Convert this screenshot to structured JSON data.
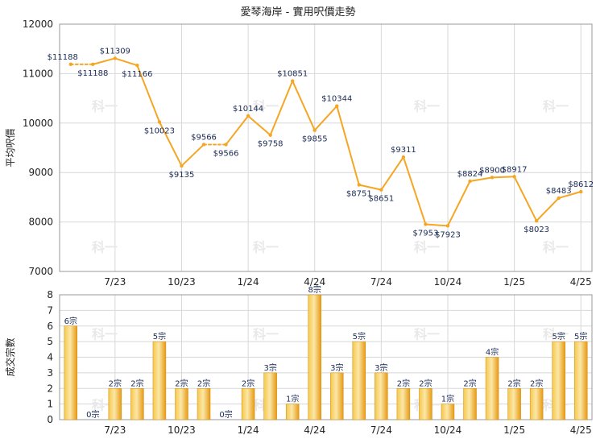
{
  "chart_data": [
    {
      "type": "line",
      "title": "愛琴海岸 - 實用呎價走勢",
      "ylabel": "平均呎價",
      "ylim": [
        7000,
        12000
      ],
      "yticks": [
        "12000",
        "11000",
        "10000",
        "9000",
        "8000",
        "7000"
      ],
      "xticks": [
        "7/23",
        "10/23",
        "1/24",
        "4/24",
        "7/24",
        "10/24",
        "1/25",
        "4/25"
      ],
      "grid": true,
      "color": "#f5a623",
      "points": [
        {
          "x": 0,
          "y": 11188,
          "label": "$11188"
        },
        {
          "x": 1,
          "y": 11188,
          "label": "$11188"
        },
        {
          "x": 2,
          "y": 11309,
          "label": "$11309"
        },
        {
          "x": 3,
          "y": 11166,
          "label": "$11166"
        },
        {
          "x": 4,
          "y": 10023,
          "label": "$10023"
        },
        {
          "x": 5,
          "y": 9135,
          "label": "$9135"
        },
        {
          "x": 6,
          "y": 9566,
          "label": "$9566"
        },
        {
          "x": 7,
          "y": 9566,
          "label": "$9566"
        },
        {
          "x": 8,
          "y": 10144,
          "label": "$10144"
        },
        {
          "x": 9,
          "y": 9758,
          "label": "$9758"
        },
        {
          "x": 10,
          "y": 10851,
          "label": "$10851"
        },
        {
          "x": 11,
          "y": 9855,
          "label": "$9855"
        },
        {
          "x": 12,
          "y": 10344,
          "label": "$10344"
        },
        {
          "x": 13,
          "y": 8751,
          "label": "$8751"
        },
        {
          "x": 14,
          "y": 8651,
          "label": "$8651"
        },
        {
          "x": 15,
          "y": 9311,
          "label": "$9311"
        },
        {
          "x": 16,
          "y": 7953,
          "label": "$7953"
        },
        {
          "x": 17,
          "y": 7923,
          "label": "$7923"
        },
        {
          "x": 18,
          "y": 8824,
          "label": "$8824"
        },
        {
          "x": 19,
          "y": 8900,
          "label": "$8900"
        },
        {
          "x": 20,
          "y": 8917,
          "label": "$8917"
        },
        {
          "x": 21,
          "y": 8023,
          "label": "$8023"
        },
        {
          "x": 22,
          "y": 8483,
          "label": "$8483"
        },
        {
          "x": 23,
          "y": 8612,
          "label": "$8612"
        }
      ]
    },
    {
      "type": "bar",
      "ylabel": "成交宗數",
      "ylim": [
        0,
        8
      ],
      "yticks": [
        "8",
        "7",
        "6",
        "5",
        "4",
        "3",
        "2",
        "1",
        "0"
      ],
      "xticks": [
        "7/23",
        "10/23",
        "1/24",
        "4/24",
        "7/24",
        "10/24",
        "1/25",
        "4/25"
      ],
      "grid": true,
      "color": "#f0b020",
      "values": [
        6,
        0,
        2,
        2,
        5,
        2,
        2,
        0,
        2,
        3,
        1,
        8,
        3,
        5,
        3,
        2,
        2,
        1,
        2,
        4,
        2,
        2,
        5,
        5
      ],
      "labels": [
        "6宗",
        "0宗",
        "2宗",
        "2宗",
        "5宗",
        "2宗",
        "2宗",
        "0宗",
        "2宗",
        "3宗",
        "1宗",
        "8宗",
        "3宗",
        "5宗",
        "3宗",
        "2宗",
        "2宗",
        "1宗",
        "2宗",
        "4宗",
        "2宗",
        "2宗",
        "5宗",
        "5宗"
      ]
    }
  ],
  "watermark": "科一"
}
